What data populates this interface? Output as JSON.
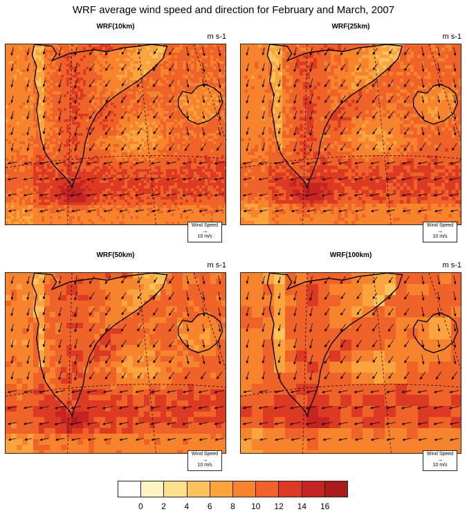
{
  "title": "WRF average wind speed and direction for February and March, 2007",
  "panels": [
    {
      "title": "WRF(10km)",
      "unit": "m s-1",
      "ref_label": "Wind Speed",
      "ref_value": "10 m/s",
      "detail": 1.0
    },
    {
      "title": "WRF(25km)",
      "unit": "m s-1",
      "ref_label": "Wind Speed",
      "ref_value": "10 m/s",
      "detail": 0.75
    },
    {
      "title": "WRF(50km)",
      "unit": "m s-1",
      "ref_label": "Wind Speed",
      "ref_value": "10 m/s",
      "detail": 0.5
    },
    {
      "title": "WRF(100km)",
      "unit": "m s-1",
      "ref_label": "Wind Speed",
      "ref_value": "10 m/s",
      "detail": 0.25
    }
  ],
  "colorbar": {
    "colors": [
      "#ffffff",
      "#fff3c4",
      "#fde08a",
      "#fcc35c",
      "#fba43e",
      "#f7842d",
      "#ef6228",
      "#dd3a24",
      "#c52422",
      "#a91b1d"
    ],
    "labels": [
      "0",
      "2",
      "4",
      "6",
      "8",
      "10",
      "12",
      "14",
      "16"
    ]
  }
}
